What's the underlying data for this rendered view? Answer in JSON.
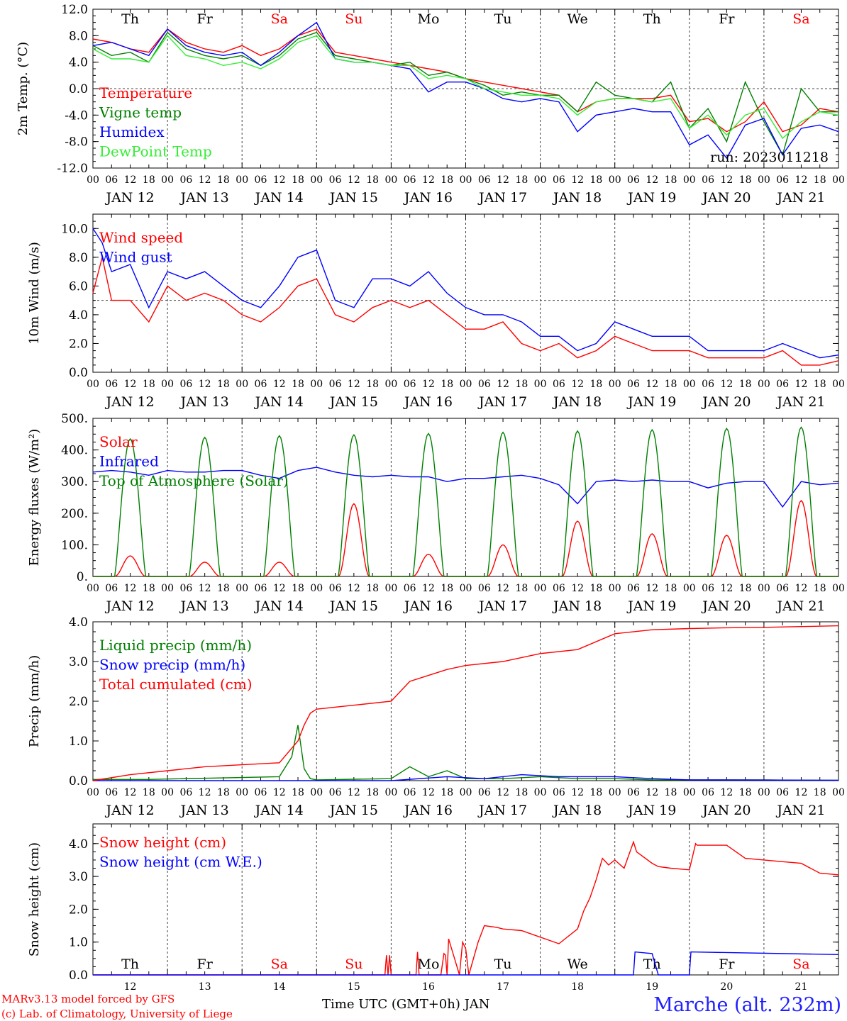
{
  "days": [
    "12",
    "13",
    "14",
    "15",
    "16",
    "17",
    "18",
    "19",
    "20",
    "21"
  ],
  "month": "JAN",
  "weekdays": [
    "Th",
    "Fr",
    "Sa",
    "Su",
    "Mo",
    "Tu",
    "We",
    "Th",
    "Fr",
    "Sa"
  ],
  "weekend_days": [
    "Sa",
    "Su"
  ],
  "hour_ticks": [
    "00",
    "06",
    "12",
    "18"
  ],
  "end_hour_tick": "00",
  "run_label": "run: 2023011218",
  "colors": {
    "red": "#ff0000",
    "green": "#008000",
    "blue": "#0000ff",
    "lightgreen": "#33ee33",
    "text_blue": "#2020ff"
  },
  "footer": {
    "model": "MARv3.13 model forced by GFS",
    "credit": "(c) Lab. of Climatology, University of Liege",
    "time_axis": "Time UTC (GMT+0h) JAN",
    "station": "Marche (alt. 232m)"
  },
  "chart_data": [
    {
      "type": "line",
      "ylabel": "2m Temp. (°C)",
      "ylim": [
        -12,
        12
      ],
      "yticks": [
        "12.0",
        "8.0",
        "4.0",
        "0.0",
        "-4.0",
        "-8.0",
        "-12.0"
      ],
      "ytick_values": [
        12,
        8,
        4,
        0,
        -4,
        -8,
        -12
      ],
      "hline": 0,
      "x_unit": "hours since JAN 12 00 UTC",
      "series": [
        {
          "name": "Temperature",
          "color": "red",
          "x": [
            0,
            6,
            12,
            18,
            24,
            30,
            36,
            42,
            48,
            54,
            60,
            66,
            72,
            78,
            84,
            90,
            96,
            102,
            108,
            114,
            120,
            126,
            132,
            138,
            144,
            150,
            156,
            162,
            168,
            174,
            180,
            186,
            192,
            198,
            204,
            210,
            216,
            222,
            228,
            234,
            240
          ],
          "values": [
            7.5,
            7,
            6,
            5.5,
            9,
            7,
            6,
            5.5,
            6.5,
            5,
            6,
            8,
            9,
            5.5,
            5,
            4.5,
            4,
            3.5,
            3,
            2.5,
            1.5,
            1,
            0.5,
            0,
            -0.5,
            -1,
            -3.5,
            -2,
            -1.5,
            -1.5,
            -1.5,
            -1,
            -5,
            -4.5,
            -6.5,
            -5,
            -2,
            -6.5,
            -5.5,
            -3,
            -3.5
          ]
        },
        {
          "name": "Vigne temp",
          "color": "green",
          "x": [
            0,
            6,
            12,
            18,
            24,
            30,
            36,
            42,
            48,
            54,
            60,
            66,
            72,
            78,
            84,
            90,
            96,
            102,
            108,
            114,
            120,
            126,
            132,
            138,
            144,
            150,
            156,
            162,
            168,
            174,
            180,
            186,
            192,
            198,
            204,
            210,
            216,
            222,
            228,
            234,
            240
          ],
          "values": [
            6.5,
            5,
            5.5,
            4,
            8.5,
            6,
            5,
            4.5,
            5,
            3.5,
            5,
            7.5,
            8.5,
            5,
            4.5,
            4,
            3.5,
            4,
            2,
            2.5,
            1.5,
            0.5,
            -1,
            -0.5,
            -1,
            -1,
            -3.5,
            1,
            -1,
            -1.5,
            -2,
            1,
            -6,
            -3,
            -8,
            1,
            -5,
            -10,
            0,
            -3.5,
            -3.5
          ]
        },
        {
          "name": "Humidex",
          "color": "blue",
          "x": [
            0,
            6,
            12,
            18,
            24,
            30,
            36,
            42,
            48,
            54,
            60,
            66,
            72,
            78,
            84,
            90,
            96,
            102,
            108,
            114,
            120,
            126,
            132,
            138,
            144,
            150,
            156,
            162,
            168,
            174,
            180,
            186,
            192,
            198,
            204,
            210,
            216,
            222,
            228,
            234,
            240
          ],
          "values": [
            6.5,
            7,
            6,
            5,
            9,
            6.5,
            5.5,
            5,
            5.5,
            3.5,
            5.5,
            8,
            10,
            4.5,
            4,
            4,
            3.5,
            3,
            -0.5,
            1,
            1,
            0,
            -1.5,
            -2,
            -1.5,
            -2,
            -6.5,
            -4,
            -3.5,
            -3,
            -3.5,
            -3.5,
            -8.5,
            -7,
            -10.5,
            -5.5,
            -4.5,
            -10,
            -6,
            -5.5,
            -6.5
          ]
        },
        {
          "name": "DewPoint Temp",
          "color": "lightgreen",
          "x": [
            0,
            6,
            12,
            18,
            24,
            30,
            36,
            42,
            48,
            54,
            60,
            66,
            72,
            78,
            84,
            90,
            96,
            102,
            108,
            114,
            120,
            126,
            132,
            138,
            144,
            150,
            156,
            162,
            168,
            174,
            180,
            186,
            192,
            198,
            204,
            210,
            216,
            222,
            228,
            234,
            240
          ],
          "values": [
            6,
            4.5,
            4.5,
            4,
            8,
            5,
            4.5,
            3.5,
            4,
            3,
            4.5,
            7,
            8,
            4.5,
            4,
            4,
            3.5,
            3.5,
            1.5,
            2,
            1.5,
            0,
            -0.5,
            -1,
            -1,
            -1.5,
            -4,
            -2,
            -1.5,
            -1.5,
            -2,
            -1.5,
            -6,
            -4,
            -7,
            -4,
            -3,
            -7.5,
            -5,
            -3.5,
            -4
          ]
        }
      ]
    },
    {
      "type": "line",
      "ylabel": "10m Wind (m/s)",
      "ylim": [
        0,
        11
      ],
      "yticks": [
        "10.0",
        "8.0",
        "6.0",
        "4.0",
        "2.0",
        "0.0"
      ],
      "ytick_values": [
        10,
        8,
        6,
        4,
        2,
        0
      ],
      "hline": 5,
      "series": [
        {
          "name": "Wind speed",
          "color": "red",
          "x": [
            0,
            3,
            6,
            12,
            18,
            24,
            30,
            36,
            42,
            48,
            54,
            60,
            66,
            72,
            78,
            84,
            90,
            96,
            102,
            108,
            114,
            120,
            126,
            132,
            138,
            144,
            150,
            156,
            162,
            168,
            174,
            180,
            186,
            192,
            198,
            204,
            210,
            216,
            222,
            228,
            234,
            240
          ],
          "values": [
            5.5,
            8,
            5,
            5,
            3.5,
            6,
            5,
            5.5,
            5,
            4,
            3.5,
            4.5,
            6,
            6.5,
            4,
            3.5,
            4.5,
            5,
            4.5,
            5,
            4,
            3,
            3,
            3.5,
            2,
            1.5,
            2,
            1,
            1.5,
            2.5,
            2,
            1.5,
            1.5,
            1.5,
            1,
            1,
            1,
            1,
            1.5,
            0.5,
            0.5,
            0.8
          ]
        },
        {
          "name": "Wind gust",
          "color": "blue",
          "x": [
            0,
            3,
            6,
            12,
            18,
            24,
            30,
            36,
            42,
            48,
            54,
            60,
            66,
            72,
            78,
            84,
            90,
            96,
            102,
            108,
            114,
            120,
            126,
            132,
            138,
            144,
            150,
            156,
            162,
            168,
            174,
            180,
            186,
            192,
            198,
            204,
            210,
            216,
            222,
            228,
            234,
            240
          ],
          "values": [
            10,
            9,
            7,
            7.5,
            4.5,
            7,
            6.5,
            7,
            6,
            5,
            4.5,
            6,
            8,
            8.5,
            5,
            4.5,
            6.5,
            6.5,
            6,
            7,
            5.5,
            4.5,
            4,
            4,
            3.5,
            2.5,
            2.5,
            1.5,
            2,
            3.5,
            3,
            2.5,
            2.5,
            2.5,
            1.5,
            1.5,
            1.5,
            1.5,
            2,
            1.5,
            1,
            1.2
          ]
        }
      ]
    },
    {
      "type": "line",
      "ylabel": "Energy fluxes (W/m²)",
      "ylim": [
        0,
        500
      ],
      "yticks": [
        "500.",
        "400.",
        "300.",
        "200.",
        "100.",
        "0."
      ],
      "ytick_values": [
        500,
        400,
        300,
        200,
        100,
        0
      ],
      "series": [
        {
          "name": "Solar",
          "color": "red",
          "day_peaks": [
            65,
            45,
            45,
            230,
            70,
            100,
            175,
            135,
            130,
            240
          ],
          "peak_hour": 12
        },
        {
          "name": "Infrared",
          "color": "blue",
          "x": [
            0,
            6,
            12,
            18,
            24,
            30,
            36,
            42,
            48,
            54,
            60,
            66,
            72,
            78,
            84,
            90,
            96,
            102,
            108,
            114,
            120,
            126,
            132,
            138,
            144,
            150,
            156,
            162,
            168,
            174,
            180,
            186,
            192,
            198,
            204,
            210,
            216,
            222,
            228,
            234,
            240
          ],
          "values": [
            330,
            335,
            330,
            320,
            335,
            330,
            330,
            335,
            335,
            320,
            310,
            335,
            345,
            330,
            320,
            315,
            320,
            315,
            315,
            300,
            310,
            310,
            315,
            320,
            310,
            290,
            230,
            300,
            305,
            300,
            305,
            300,
            300,
            280,
            295,
            300,
            300,
            220,
            300,
            290,
            295
          ]
        },
        {
          "name": "Top of Atmosphere (Solar)",
          "color": "green",
          "day_peaks": [
            435,
            440,
            445,
            448,
            452,
            456,
            460,
            464,
            468,
            472
          ],
          "peak_hour": 12
        }
      ]
    },
    {
      "type": "line",
      "ylabel": "Precip (mm/h)",
      "ylim": [
        0,
        4
      ],
      "yticks": [
        "4.0",
        "3.0",
        "2.0",
        "1.0",
        "0.0"
      ],
      "ytick_values": [
        4,
        3,
        2,
        1,
        0
      ],
      "series": [
        {
          "name": "Liquid precip (mm/h)",
          "color": "green",
          "x": [
            0,
            18,
            60,
            64,
            66,
            68,
            70,
            72,
            96,
            102,
            108,
            114,
            120,
            132,
            144,
            156,
            168,
            180,
            192,
            204,
            216,
            228,
            240
          ],
          "values": [
            0.03,
            0.03,
            0.1,
            0.6,
            1.4,
            0.3,
            0.05,
            0.02,
            0.05,
            0.35,
            0.1,
            0.25,
            0.05,
            0.05,
            0.1,
            0.05,
            0.05,
            0.02,
            0.02,
            0.02,
            0.02,
            0.01,
            0.01
          ]
        },
        {
          "name": "Snow precip (mm/h)",
          "color": "blue",
          "x": [
            0,
            96,
            114,
            126,
            138,
            150,
            160,
            168,
            180,
            192,
            240
          ],
          "values": [
            0,
            0,
            0.1,
            0.05,
            0.15,
            0.1,
            0.1,
            0.1,
            0.05,
            0.02,
            0.01
          ]
        },
        {
          "name": "Total cumulated (cm)",
          "color": "red",
          "x": [
            0,
            12,
            24,
            36,
            48,
            60,
            66,
            68,
            70,
            72,
            84,
            96,
            102,
            108,
            114,
            120,
            132,
            144,
            156,
            168,
            180,
            192,
            204,
            216,
            228,
            240
          ],
          "values": [
            0,
            0.15,
            0.25,
            0.35,
            0.4,
            0.45,
            1.0,
            1.4,
            1.7,
            1.8,
            1.9,
            2.0,
            2.5,
            2.65,
            2.8,
            2.9,
            3.0,
            3.2,
            3.3,
            3.7,
            3.8,
            3.83,
            3.85,
            3.86,
            3.88,
            3.9
          ]
        }
      ]
    },
    {
      "type": "line",
      "ylabel": "Snow height (cm)",
      "ylim": [
        0,
        4.6
      ],
      "yticks": [
        "4.0",
        "3.0",
        "2.0",
        "1.0",
        "0.0"
      ],
      "ytick_values": [
        4,
        3,
        2,
        1,
        0
      ],
      "series": [
        {
          "name": "Snow height (cm)",
          "color": "red",
          "x": [
            0,
            94,
            94.5,
            95,
            95.5,
            96,
            104,
            104.5,
            105,
            112,
            113,
            113.5,
            114,
            114.5,
            118,
            119,
            120,
            121,
            124,
            126,
            130,
            132,
            138,
            150,
            156,
            158,
            160,
            162,
            164,
            166,
            168,
            171,
            174,
            175,
            180,
            182,
            186,
            192,
            194,
            194.5,
            198,
            204,
            210,
            216,
            222,
            228,
            234,
            240
          ],
          "values": [
            0,
            0,
            0.6,
            0,
            0.6,
            0,
            0,
            0.7,
            0,
            0,
            0.65,
            0.6,
            0,
            1.1,
            0,
            1,
            0.8,
            0,
            1.0,
            1.5,
            1.45,
            1.4,
            1.35,
            0.95,
            1.4,
            1.95,
            2.35,
            2.9,
            3.55,
            3.35,
            3.5,
            3.25,
            4.05,
            3.75,
            3.4,
            3.3,
            3.25,
            3.2,
            4.0,
            3.95,
            3.95,
            3.95,
            3.55,
            3.5,
            3.45,
            3.4,
            3.1,
            3.05
          ]
        },
        {
          "name": "Snow height (cm W.E.)",
          "color": "blue",
          "x": [
            0,
            174,
            174.5,
            180,
            182,
            183,
            192,
            192.5,
            240
          ],
          "values": [
            0,
            0,
            0.7,
            0.65,
            0,
            0,
            0,
            0.7,
            0.62
          ]
        }
      ]
    }
  ]
}
